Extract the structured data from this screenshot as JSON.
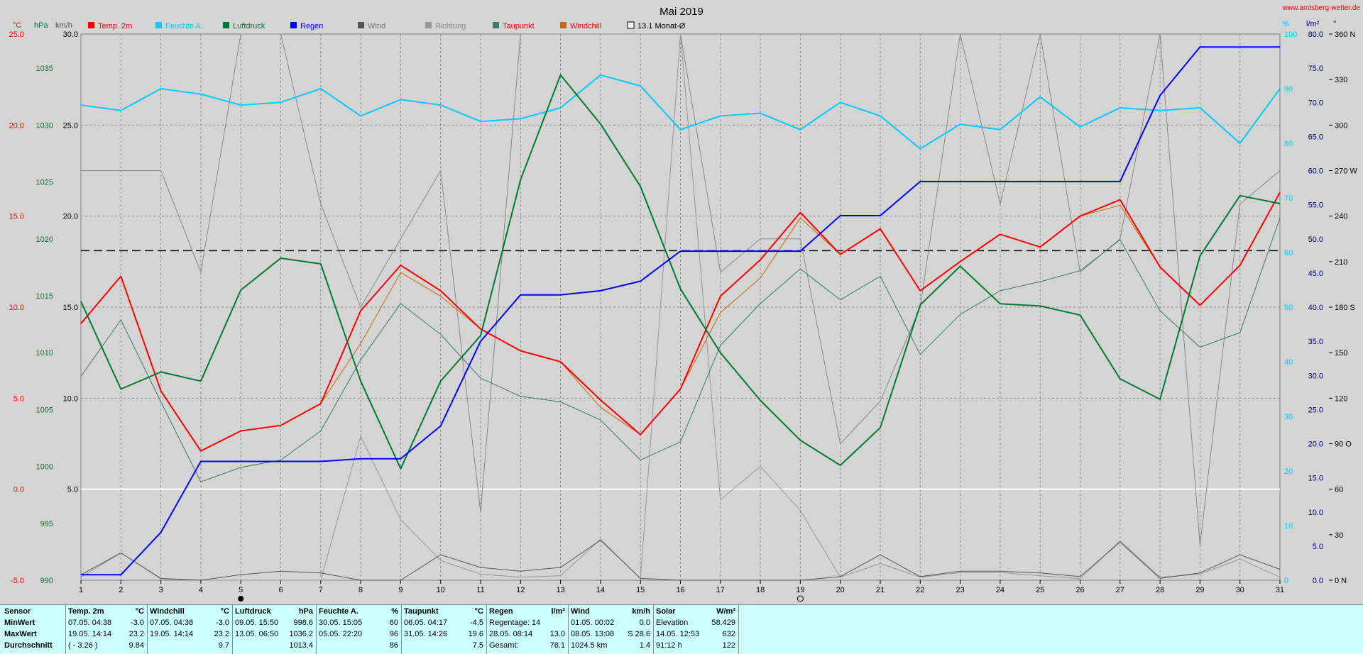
{
  "page": {
    "title": "Mai 2019",
    "site": "www.amtsberg-wetter.de"
  },
  "axis_units": {
    "c": "°C",
    "hpa": "hPa",
    "kmh": "km/h",
    "pct": "%",
    "lm2": "l/m²",
    "deg": "°"
  },
  "legend": [
    {
      "label": "Temp. 2m",
      "color": "#ff0000",
      "text_color": "#ff0000"
    },
    {
      "label": "Feuchte A.",
      "color": "#00ccff",
      "text_color": "#00ccff"
    },
    {
      "label": "Luftdruck",
      "color": "#007a33",
      "text_color": "#007a33"
    },
    {
      "label": "Regen",
      "color": "#0000ff",
      "text_color": "#0000ff"
    },
    {
      "label": "Wind",
      "color": "#555555",
      "text_color": "#777777"
    },
    {
      "label": "Richtung",
      "color": "#999999",
      "text_color": "#888888"
    },
    {
      "label": "Taupunkt",
      "color": "#3a7a70",
      "text_color": "#ff0000"
    },
    {
      "label": "Windchill",
      "color": "#cc6600",
      "text_color": "#ff0000"
    },
    {
      "label": "13.1 Monat-Ø",
      "color": "#ffffff",
      "text_color": "#000000",
      "box": true
    }
  ],
  "chart_data": {
    "type": "line",
    "title": "Mai 2019",
    "x": [
      1,
      2,
      3,
      4,
      5,
      6,
      7,
      8,
      9,
      10,
      11,
      12,
      13,
      14,
      15,
      16,
      17,
      18,
      19,
      20,
      21,
      22,
      23,
      24,
      25,
      26,
      27,
      28,
      29,
      30,
      31
    ],
    "xlim": [
      1,
      31
    ],
    "grid": true,
    "legend_placement": "top",
    "axes": {
      "temp_c": {
        "range": [
          -5,
          25
        ],
        "ticks": [
          -5.0,
          0.0,
          5.0,
          10.0,
          15.0,
          20.0,
          25.0
        ],
        "color": "#ff0000"
      },
      "pressure_hpa": {
        "range": [
          990,
          1038
        ],
        "ticks": [
          990,
          995,
          1000,
          1005,
          1010,
          1015,
          1020,
          1025,
          1030,
          1035
        ],
        "color": "#007a33"
      },
      "wind_kmh": {
        "range": [
          0,
          30
        ],
        "ticks": [
          5.0,
          10.0,
          15.0,
          20.0,
          25.0,
          30.0
        ],
        "color": "#000000"
      },
      "humidity_pct": {
        "range": [
          0,
          100
        ],
        "ticks": [
          0,
          10,
          20,
          30,
          40,
          50,
          60,
          70,
          80,
          90,
          100
        ],
        "color": "#00ccff"
      },
      "rain_lm2": {
        "range": [
          0,
          80
        ],
        "ticks": [
          0.0,
          5.0,
          10.0,
          15.0,
          20.0,
          25.0,
          30.0,
          35.0,
          40.0,
          45.0,
          50.0,
          55.0,
          60.0,
          65.0,
          70.0,
          75.0,
          80.0
        ],
        "color": "#000080"
      },
      "direction_deg": {
        "range": [
          0,
          360
        ],
        "ticks": [
          "0 N",
          "30",
          "60",
          "90 O",
          "120",
          "150",
          "180 S",
          "210",
          "240",
          "270 W",
          "300",
          "330",
          "360 N"
        ],
        "color": "#000000"
      }
    },
    "monthly_mean": {
      "label": "13.1 Monat-Ø",
      "value": 13.1,
      "axis": "temp_c"
    },
    "series": [
      {
        "name": "Feuchte A.",
        "axis": "humidity_pct",
        "color": "#00ccff",
        "width": 2,
        "values": [
          87,
          86,
          90,
          89,
          87,
          87.5,
          90,
          85,
          88,
          87,
          84,
          84.5,
          86.5,
          92.5,
          90.5,
          82.5,
          85,
          85.5,
          82.5,
          87.5,
          85,
          79,
          83.5,
          82.5,
          88.5,
          83,
          86.5,
          86,
          86.5,
          80,
          90
        ]
      },
      {
        "name": "Regen",
        "axis": "rain_lm2",
        "color": "#0000ff",
        "width": 2,
        "values": [
          0.8,
          0.8,
          7,
          17.4,
          17.4,
          17.4,
          17.4,
          17.8,
          17.8,
          22.6,
          35,
          41.8,
          41.8,
          42.4,
          43.8,
          48.2,
          48.2,
          48.2,
          48.2,
          53.4,
          53.4,
          58.4,
          58.4,
          58.4,
          58.4,
          58.4,
          58.4,
          71,
          78.1,
          78.1,
          78.1
        ]
      },
      {
        "name": "Luftdruck",
        "axis": "pressure_hpa",
        "color": "#007a33",
        "width": 2,
        "values": [
          1014.5,
          1006.8,
          1008.3,
          1007.5,
          1015.5,
          1018.3,
          1017.8,
          1007.5,
          999.8,
          1007.5,
          1011.5,
          1025.2,
          1034.4,
          1030.1,
          1024.6,
          1015.6,
          1010,
          1005.8,
          1002.3,
          1000.1,
          1003.4,
          1014.2,
          1017.6,
          1014.3,
          1014.1,
          1013.3,
          1007.7,
          1005.9,
          1018.5,
          1023.8,
          1023.1
        ]
      },
      {
        "name": "Temp. 2m",
        "axis": "temp_c",
        "color": "#ff0000",
        "width": 2,
        "values": [
          9.1,
          11.7,
          5.4,
          2.1,
          3.2,
          3.5,
          4.7,
          9.8,
          12.3,
          10.9,
          8.8,
          7.6,
          7.0,
          4.9,
          3.0,
          5.5,
          10.6,
          12.6,
          15.2,
          12.9,
          14.3,
          10.9,
          12.5,
          14.0,
          13.3,
          15.0,
          15.9,
          12.2,
          10.1,
          12.3,
          16.3
        ]
      },
      {
        "name": "Windchill",
        "axis": "temp_c",
        "color": "#cc6600",
        "width": 1,
        "values": [
          9.1,
          11.7,
          5.4,
          2.1,
          3.2,
          3.5,
          4.7,
          8.0,
          11.9,
          10.6,
          8.8,
          7.6,
          7.0,
          4.5,
          3.0,
          5.5,
          9.7,
          11.6,
          14.9,
          12.9,
          14.3,
          10.9,
          12.5,
          14.0,
          13.3,
          15.0,
          15.6,
          12.2,
          10.1,
          12.3,
          16.3
        ]
      },
      {
        "name": "Taupunkt",
        "axis": "temp_c",
        "color": "#3a7a70",
        "width": 1,
        "values": [
          6.2,
          9.3,
          4.8,
          0.4,
          1.2,
          1.6,
          3.2,
          7.1,
          10.2,
          8.5,
          6.1,
          5.1,
          4.8,
          3.8,
          1.6,
          2.6,
          7.9,
          10.2,
          12.1,
          10.4,
          11.7,
          7.4,
          9.6,
          10.9,
          11.4,
          12.0,
          13.7,
          9.8,
          7.8,
          8.6,
          14.9
        ]
      },
      {
        "name": "Wind",
        "axis": "wind_kmh",
        "color": "#555555",
        "width": 1,
        "values": [
          0.3,
          1.5,
          0.1,
          0,
          0.3,
          0.5,
          0.4,
          0,
          0,
          1.4,
          0.7,
          0.5,
          0.7,
          2.2,
          0.1,
          0,
          0,
          0,
          0,
          0.2,
          1.4,
          0.2,
          0.5,
          0.5,
          0.4,
          0.2,
          2.1,
          0.1,
          0.4,
          1.4,
          0.6
        ]
      },
      {
        "name": "Richtung",
        "axis": "direction_deg",
        "color": "#999999",
        "width": 1,
        "values": [
          2,
          18,
          1,
          0,
          0,
          0,
          0,
          95,
          40,
          13,
          4,
          2,
          3,
          27,
          1,
          360,
          53,
          75,
          46,
          2,
          11,
          2,
          5,
          5,
          3,
          1,
          26,
          2,
          4,
          14,
          2
        ]
      },
      {
        "name": "Richtung (Balken)",
        "axis": "direction_deg",
        "color": "#888888",
        "width": 1,
        "values": [
          270,
          270,
          270,
          203,
          360,
          360,
          248,
          180,
          225,
          270,
          45,
          360,
          360,
          360,
          360,
          360,
          203,
          225,
          225,
          90,
          118,
          180,
          360,
          248,
          360,
          203,
          225,
          360,
          23,
          248,
          270
        ]
      }
    ]
  },
  "stats": {
    "row_labels": [
      "Sensor",
      "MinWert",
      "MaxWert",
      "Durchschnitt"
    ],
    "columns": [
      {
        "name": "Temp. 2m",
        "unit": "°C",
        "rows": [
          [
            "07.05.  04:38",
            "-3.0"
          ],
          [
            "19.05.  14:14",
            "23.2"
          ],
          [
            "( - 3.26 )",
            "9.84"
          ]
        ]
      },
      {
        "name": "Windchill",
        "unit": "°C",
        "rows": [
          [
            "07.05.  04:38",
            "-3.0"
          ],
          [
            "19.05.  14:14",
            "23.2"
          ],
          [
            "",
            "9.7"
          ]
        ]
      },
      {
        "name": "Luftdruck",
        "unit": "hPa",
        "rows": [
          [
            "09.05.  15:50",
            "998.6"
          ],
          [
            "13.05.  06:50",
            "1036.2"
          ],
          [
            "",
            "1013.4"
          ]
        ]
      },
      {
        "name": "Feuchte A.",
        "unit": "%",
        "rows": [
          [
            "30.05.  15:05",
            "60"
          ],
          [
            "05.05.  22:20",
            "96"
          ],
          [
            "",
            "86"
          ]
        ]
      },
      {
        "name": "Taupunkt",
        "unit": "°C",
        "rows": [
          [
            "06.05.  04:17",
            "-4.5"
          ],
          [
            "31.05.  14:26",
            "19.6"
          ],
          [
            "",
            "7.5"
          ]
        ]
      },
      {
        "name": "Regen",
        "unit": "l/m²",
        "rows": [
          [
            "Regentage: 14",
            ""
          ],
          [
            "28.05.  08:14",
            "13.0"
          ],
          [
            "Gesamt:",
            "78.1"
          ]
        ]
      },
      {
        "name": "Wind",
        "unit": "km/h",
        "rows": [
          [
            "01.05.  00:02",
            "0.0"
          ],
          [
            "08.05.  13:08",
            "S 28.6"
          ],
          [
            "1024.5 km",
            "1.4"
          ]
        ]
      },
      {
        "name": "Solar",
        "unit": "W/m²",
        "rows": [
          [
            "Elevation",
            "58.429"
          ],
          [
            "14.05.  12:53",
            "632"
          ],
          [
            "91:12 h",
            "122"
          ]
        ]
      }
    ]
  }
}
